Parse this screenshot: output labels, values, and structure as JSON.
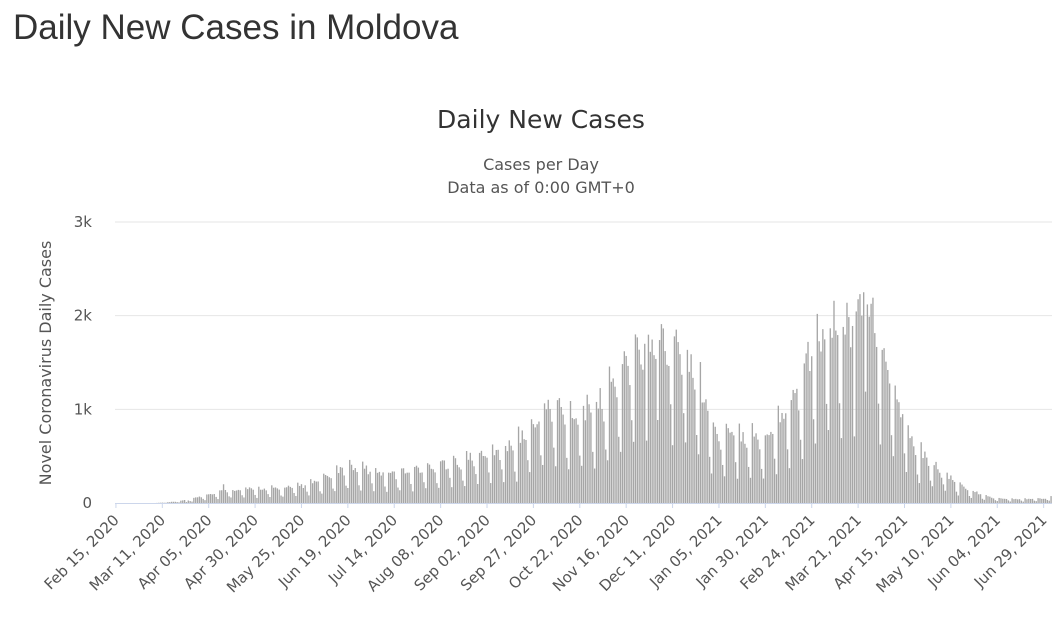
{
  "page": {
    "title": "Daily New Cases in Moldova"
  },
  "chart_data": {
    "type": "bar",
    "title": "Daily New Cases",
    "subtitle_lines": [
      "Cases per Day",
      "Data as of 0:00 GMT+0"
    ],
    "xlabel": "",
    "ylabel": "Novel Coronavirus Daily Cases",
    "ylim": [
      0,
      3000
    ],
    "y_ticks": [
      {
        "value": 0,
        "label": "0"
      },
      {
        "value": 1000,
        "label": "1k"
      },
      {
        "value": 2000,
        "label": "2k"
      },
      {
        "value": 3000,
        "label": "3k"
      }
    ],
    "x_tick_labels": [
      "Feb 15, 2020",
      "Mar 11, 2020",
      "Apr 05, 2020",
      "Apr 30, 2020",
      "May 25, 2020",
      "Jun 19, 2020",
      "Jul 14, 2020",
      "Aug 08, 2020",
      "Sep 02, 2020",
      "Sep 27, 2020",
      "Oct 22, 2020",
      "Nov 16, 2020",
      "Dec 11, 2020",
      "Jan 05, 2021",
      "Jan 30, 2021",
      "Feb 24, 2021",
      "Mar 21, 2021",
      "Apr 15, 2021",
      "May 10, 2021",
      "Jun 04, 2021",
      "Jun 29, 2021"
    ],
    "x_start": "Feb 15, 2020",
    "x_end": "Jul 03, 2021",
    "tick_interval_days": 25,
    "gridlines": true,
    "legend": "none",
    "bar_color": "#a6a6a6",
    "keyframes": [
      [
        "Feb 15, 2020",
        0
      ],
      [
        "Mar 07, 2020",
        0
      ],
      [
        "Mar 15, 2020",
        8
      ],
      [
        "Mar 25, 2020",
        30
      ],
      [
        "Apr 05, 2020",
        90
      ],
      [
        "Apr 15, 2020",
        130
      ],
      [
        "Apr 30, 2020",
        140
      ],
      [
        "May 15, 2020",
        150
      ],
      [
        "May 25, 2020",
        170
      ],
      [
        "Jun 05, 2020",
        230
      ],
      [
        "Jun 19, 2020",
        360
      ],
      [
        "Jun 25, 2020",
        340
      ],
      [
        "Jul 14, 2020",
        300
      ],
      [
        "Jul 25, 2020",
        330
      ],
      [
        "Aug 08, 2020",
        390
      ],
      [
        "Aug 20, 2020",
        420
      ],
      [
        "Sep 02, 2020",
        500
      ],
      [
        "Sep 15, 2020",
        560
      ],
      [
        "Sep 27, 2020",
        780
      ],
      [
        "Oct 05, 2020",
        960
      ],
      [
        "Oct 12, 2020",
        880
      ],
      [
        "Oct 22, 2020",
        900
      ],
      [
        "Nov 01, 2020",
        960
      ],
      [
        "Nov 10, 2020",
        1180
      ],
      [
        "Nov 16, 2020",
        1400
      ],
      [
        "Nov 25, 2020",
        1550
      ],
      [
        "Dec 01, 2020",
        1620
      ],
      [
        "Dec 06, 2020",
        1650
      ],
      [
        "Dec 11, 2020",
        1600
      ],
      [
        "Dec 20, 2020",
        1450
      ],
      [
        "Dec 28, 2020",
        1050
      ],
      [
        "Jan 05, 2021",
        620
      ],
      [
        "Jan 12, 2021",
        700
      ],
      [
        "Jan 20, 2021",
        680
      ],
      [
        "Jan 30, 2021",
        640
      ],
      [
        "Feb 07, 2021",
        860
      ],
      [
        "Feb 15, 2021",
        1050
      ],
      [
        "Feb 24, 2021",
        1500
      ],
      [
        "Mar 05, 2021",
        1700
      ],
      [
        "Mar 15, 2021",
        1800
      ],
      [
        "Mar 21, 2021",
        1850
      ],
      [
        "Mar 25, 2021",
        2000
      ],
      [
        "Apr 01, 2021",
        1650
      ],
      [
        "Apr 08, 2021",
        1200
      ],
      [
        "Apr 15, 2021",
        850
      ],
      [
        "Apr 22, 2021",
        560
      ],
      [
        "May 01, 2021",
        380
      ],
      [
        "May 10, 2021",
        250
      ],
      [
        "May 20, 2021",
        120
      ],
      [
        "Jun 04, 2021",
        45
      ],
      [
        "Jun 20, 2021",
        40
      ],
      [
        "Jun 29, 2021",
        45
      ],
      [
        "Jul 03, 2021",
        60
      ]
    ],
    "peaks": [
      [
        "Mar 24, 2020",
        10
      ],
      [
        "Apr 13, 2020",
        200
      ],
      [
        "Jun 20, 2020",
        460
      ],
      [
        "Oct 04, 2020",
        1000
      ],
      [
        "Oct 11, 2020",
        1120
      ],
      [
        "Nov 15, 2020",
        1620
      ],
      [
        "Nov 26, 2020",
        1700
      ],
      [
        "Dec 04, 2020",
        1740
      ],
      [
        "Feb 22, 2021",
        1720
      ],
      [
        "Mar 13, 2021",
        1880
      ],
      [
        "Mar 18, 2021",
        1890
      ],
      [
        "Mar 24, 2021",
        2250
      ],
      [
        "Mar 26, 2021",
        2120
      ],
      [
        "Apr 06, 2021",
        1420
      ]
    ]
  }
}
